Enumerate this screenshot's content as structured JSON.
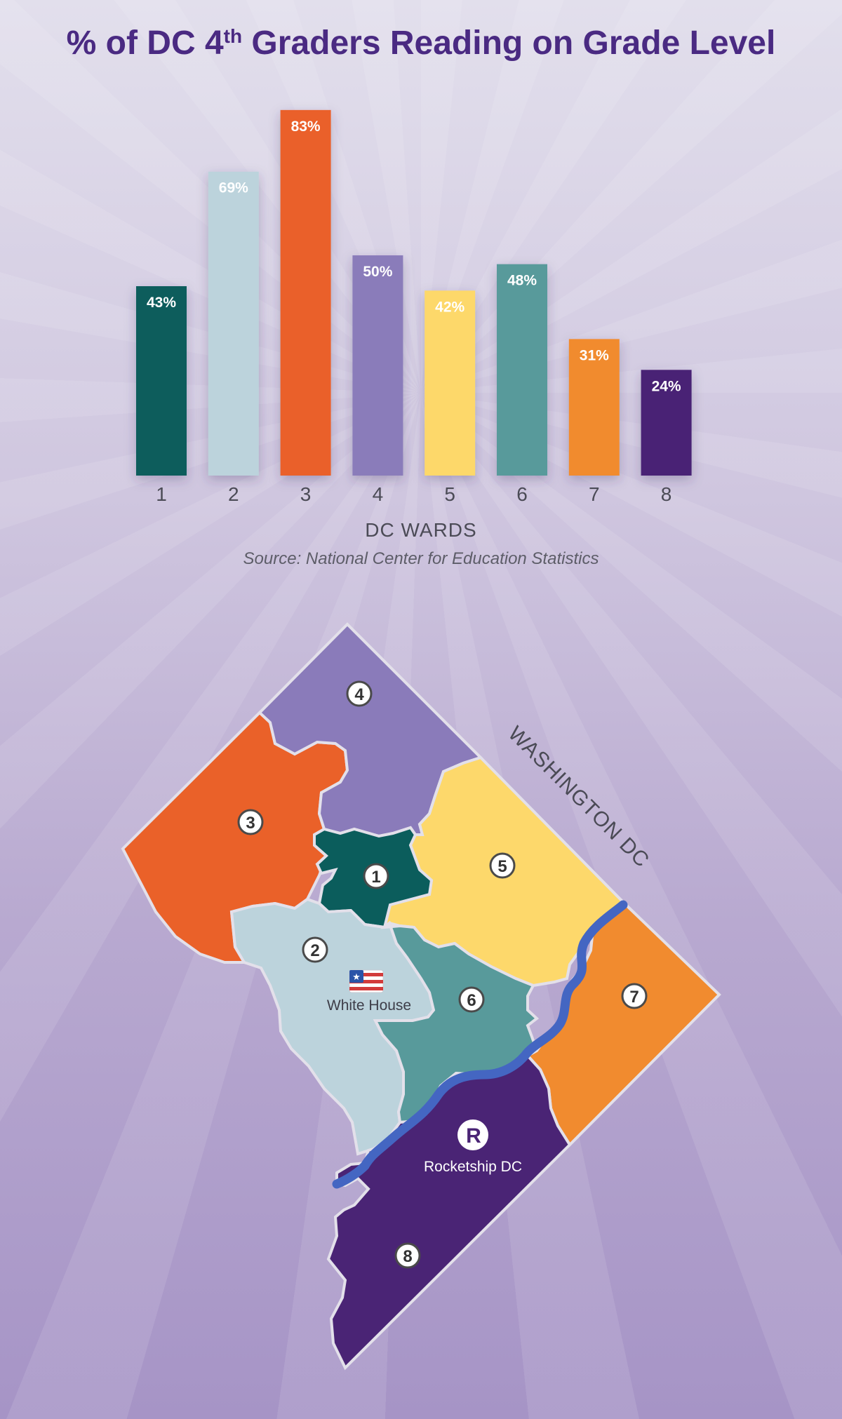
{
  "title_main": "% of DC 4",
  "title_sup": "th",
  "title_rest": " Graders Reading on Grade Level",
  "chart_data": {
    "type": "bar",
    "title": "% of DC 4th Graders Reading on Grade Level",
    "categories": [
      "1",
      "2",
      "3",
      "4",
      "5",
      "6",
      "7",
      "8"
    ],
    "values": [
      43,
      69,
      83,
      50,
      42,
      48,
      31,
      24
    ],
    "value_labels": [
      "43%",
      "69%",
      "83%",
      "50%",
      "42%",
      "48%",
      "31%",
      "24%"
    ],
    "colors": [
      "#0b5d5c",
      "#bcd3dc",
      "#ea6129",
      "#8a7bba",
      "#fdd86b",
      "#589a9b",
      "#f18b2f",
      "#4a2475"
    ],
    "label_colors": [
      "#ffffff",
      "#ffffff",
      "#ffffff",
      "#ffffff",
      "#ffffff",
      "#ffffff",
      "#ffffff",
      "#ffffff"
    ],
    "xlabel": "DC WARDS",
    "ylabel": "",
    "ylim": [
      0,
      100
    ],
    "grid": false,
    "source": "Source: National Center for Education Statistics"
  },
  "map": {
    "region_label": "WASHINGTON DC",
    "landmarks": {
      "white_house": "White House",
      "rocketship": "Rocketship DC",
      "rocketship_logo_letter": "R"
    },
    "wards": [
      {
        "number": "1",
        "color": "#0b5d5c"
      },
      {
        "number": "2",
        "color": "#bcd3dc"
      },
      {
        "number": "3",
        "color": "#ea6129"
      },
      {
        "number": "4",
        "color": "#8a7bba"
      },
      {
        "number": "5",
        "color": "#fdd86b"
      },
      {
        "number": "6",
        "color": "#589a9b"
      },
      {
        "number": "7",
        "color": "#f18b2f"
      },
      {
        "number": "8",
        "color": "#4a2475"
      }
    ],
    "river_color": "#4466c2"
  }
}
